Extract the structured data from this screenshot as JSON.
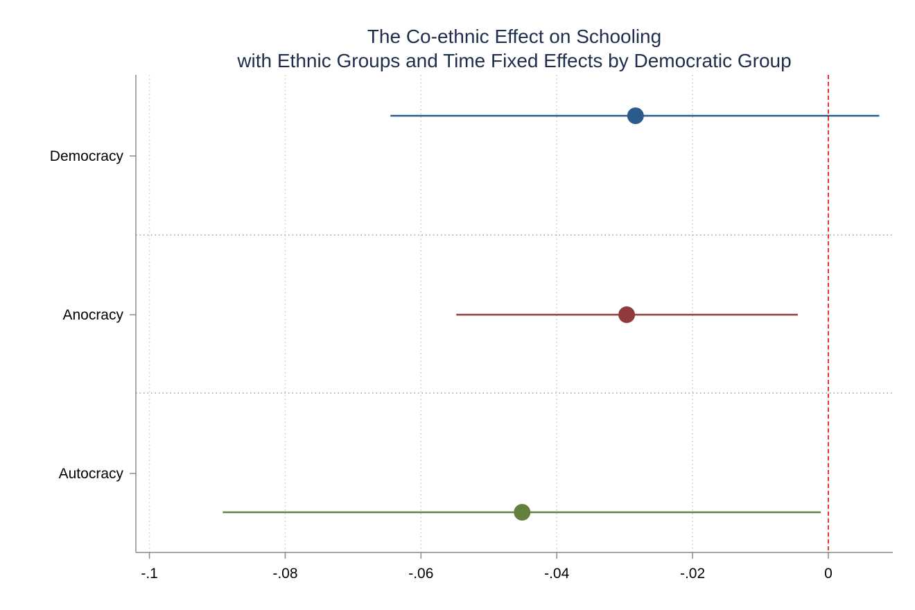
{
  "chart_data": {
    "type": "scatter",
    "title": "The Co-ethnic Effect on Schooling",
    "subtitle": "with Ethnic Groups and Time Fixed Effects by Democratic Group",
    "xlabel": "",
    "ylabel": "",
    "xlim": [
      -0.102,
      0.0095
    ],
    "xticks": [
      -0.1,
      -0.08,
      -0.06,
      -0.04,
      -0.02,
      0
    ],
    "xtick_labels": [
      "-.1",
      "-.08",
      "-.06",
      "-.04",
      "-.02",
      "0"
    ],
    "grid": "vertical dotted",
    "reference_line": {
      "x": 0,
      "style": "dashed",
      "color": "#e8322d"
    },
    "categories": [
      "Democracy",
      "Anocracy",
      "Autocracy"
    ],
    "series": [
      {
        "category": "Democracy",
        "estimate": -0.0284,
        "ci_low": -0.0645,
        "ci_high": 0.0075,
        "color": "#2b5b8c"
      },
      {
        "category": "Anocracy",
        "estimate": -0.0297,
        "ci_low": -0.0548,
        "ci_high": -0.0045,
        "color": "#8f3a3d"
      },
      {
        "category": "Autocracy",
        "estimate": -0.0451,
        "ci_low": -0.0892,
        "ci_high": -0.0011,
        "color": "#63803f"
      }
    ]
  }
}
